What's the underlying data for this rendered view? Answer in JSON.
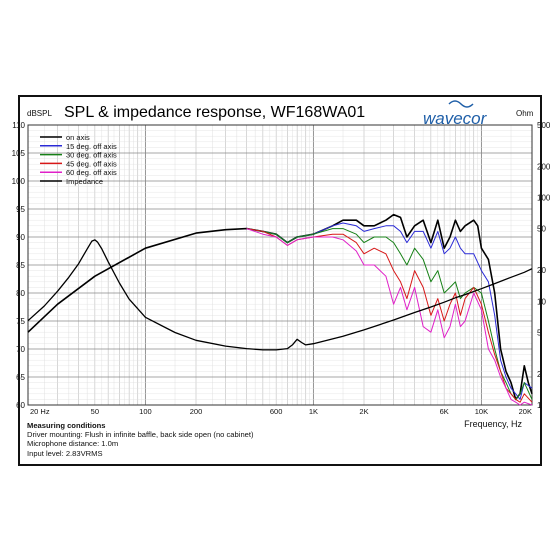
{
  "chart_data": {
    "type": "line",
    "title": "SPL & impedance response, WF168WA01",
    "brand": "wavecor",
    "brand_color": "#1f5fa8",
    "left_axis_label": "dBSPL",
    "right_axis_label": "Ohm",
    "xlabel": "Frequency, Hz",
    "x_scale": "log",
    "xlim": [
      20,
      20000
    ],
    "ylim_left": [
      60,
      110
    ],
    "ylim_right_log": [
      1,
      500
    ],
    "x_tick_labels": [
      {
        "v": 20,
        "t": "20 Hz"
      },
      {
        "v": 50,
        "t": "50"
      },
      {
        "v": 100,
        "t": "100"
      },
      {
        "v": 200,
        "t": "200"
      },
      {
        "v": 600,
        "t": "600"
      },
      {
        "v": 1000,
        "t": "1K"
      },
      {
        "v": 2000,
        "t": "2K"
      },
      {
        "v": 6000,
        "t": "6K"
      },
      {
        "v": 10000,
        "t": "10K"
      },
      {
        "v": 20000,
        "t": "20K"
      }
    ],
    "y_left_ticks": [
      60,
      65,
      70,
      75,
      80,
      85,
      90,
      95,
      100,
      105,
      110
    ],
    "y_right_ticks": [
      {
        "v": 1,
        "t": "1"
      },
      {
        "v": 2,
        "t": "2"
      },
      {
        "v": 5,
        "t": "5"
      },
      {
        "v": 10,
        "t": "10"
      },
      {
        "v": 20,
        "t": "20"
      },
      {
        "v": 50,
        "t": "50"
      },
      {
        "v": 100,
        "t": "100"
      },
      {
        "v": 200,
        "t": "200"
      },
      {
        "v": 500,
        "t": "500"
      }
    ],
    "grid": true,
    "legend_position": "top-left",
    "series": [
      {
        "name": "on axis",
        "color": "#000000",
        "axis": "left",
        "width": 1.6,
        "points": [
          [
            20,
            73
          ],
          [
            30,
            78
          ],
          [
            50,
            83
          ],
          [
            100,
            88
          ],
          [
            200,
            90.7
          ],
          [
            300,
            91.3
          ],
          [
            400,
            91.5
          ],
          [
            500,
            91
          ],
          [
            600,
            90.5
          ],
          [
            700,
            89
          ],
          [
            800,
            90
          ],
          [
            1000,
            90.5
          ],
          [
            1300,
            92
          ],
          [
            1500,
            93
          ],
          [
            1800,
            93
          ],
          [
            2000,
            92
          ],
          [
            2300,
            92
          ],
          [
            2700,
            93
          ],
          [
            3000,
            94
          ],
          [
            3300,
            93.5
          ],
          [
            3600,
            90
          ],
          [
            4000,
            92
          ],
          [
            4500,
            93
          ],
          [
            5000,
            89
          ],
          [
            5500,
            93
          ],
          [
            6000,
            88
          ],
          [
            6500,
            90
          ],
          [
            7000,
            93
          ],
          [
            7500,
            91
          ],
          [
            8000,
            92
          ],
          [
            9000,
            93
          ],
          [
            9500,
            92
          ],
          [
            10000,
            88
          ],
          [
            11000,
            86
          ],
          [
            12000,
            80
          ],
          [
            13000,
            70
          ],
          [
            14000,
            66
          ],
          [
            15000,
            64
          ],
          [
            16000,
            61
          ],
          [
            17000,
            62
          ],
          [
            18000,
            67
          ],
          [
            19000,
            64
          ],
          [
            20000,
            62
          ]
        ]
      },
      {
        "name": "15 deg. off axis",
        "color": "#2a2ad6",
        "axis": "left",
        "width": 1,
        "points": [
          [
            400,
            91.5
          ],
          [
            500,
            91
          ],
          [
            600,
            90.5
          ],
          [
            700,
            89
          ],
          [
            800,
            90
          ],
          [
            1000,
            90.5
          ],
          [
            1300,
            92
          ],
          [
            1500,
            92.5
          ],
          [
            1800,
            92
          ],
          [
            2000,
            91
          ],
          [
            2300,
            91.5
          ],
          [
            2700,
            92
          ],
          [
            3000,
            92
          ],
          [
            3300,
            91
          ],
          [
            3600,
            89
          ],
          [
            4000,
            91
          ],
          [
            4500,
            91
          ],
          [
            5000,
            88
          ],
          [
            5500,
            91
          ],
          [
            6000,
            87
          ],
          [
            6500,
            88
          ],
          [
            7000,
            90
          ],
          [
            7500,
            88
          ],
          [
            8000,
            87
          ],
          [
            9000,
            87
          ],
          [
            10000,
            84
          ],
          [
            11000,
            82
          ],
          [
            12000,
            76
          ],
          [
            13000,
            68
          ],
          [
            14000,
            65
          ],
          [
            15000,
            63
          ],
          [
            16000,
            62
          ],
          [
            17000,
            61
          ],
          [
            18000,
            64
          ],
          [
            20000,
            63
          ]
        ]
      },
      {
        "name": "30 deg. off axis",
        "color": "#168016",
        "axis": "left",
        "width": 1,
        "points": [
          [
            400,
            91.5
          ],
          [
            500,
            91
          ],
          [
            600,
            90.5
          ],
          [
            700,
            89
          ],
          [
            800,
            90
          ],
          [
            1000,
            90.5
          ],
          [
            1300,
            91.5
          ],
          [
            1500,
            91.5
          ],
          [
            1800,
            90.5
          ],
          [
            2000,
            89
          ],
          [
            2300,
            90
          ],
          [
            2700,
            90
          ],
          [
            3000,
            89
          ],
          [
            3300,
            87
          ],
          [
            3600,
            85
          ],
          [
            4000,
            88
          ],
          [
            4500,
            86
          ],
          [
            5000,
            82
          ],
          [
            5500,
            84
          ],
          [
            6000,
            80
          ],
          [
            6500,
            81
          ],
          [
            7000,
            82
          ],
          [
            7500,
            79
          ],
          [
            8000,
            80
          ],
          [
            9000,
            81
          ],
          [
            10000,
            80
          ],
          [
            11000,
            75
          ],
          [
            12000,
            70
          ],
          [
            13000,
            66
          ],
          [
            14000,
            64
          ],
          [
            15000,
            62
          ],
          [
            16000,
            61
          ],
          [
            17000,
            62
          ],
          [
            18000,
            64
          ],
          [
            20000,
            61
          ]
        ]
      },
      {
        "name": "45 deg. off axis",
        "color": "#d81818",
        "axis": "left",
        "width": 1,
        "points": [
          [
            400,
            91.5
          ],
          [
            500,
            91
          ],
          [
            600,
            90
          ],
          [
            700,
            88.5
          ],
          [
            800,
            89.5
          ],
          [
            1000,
            90
          ],
          [
            1300,
            90.5
          ],
          [
            1500,
            90.5
          ],
          [
            1800,
            89
          ],
          [
            2000,
            87
          ],
          [
            2300,
            88
          ],
          [
            2700,
            87
          ],
          [
            3000,
            84
          ],
          [
            3300,
            82
          ],
          [
            3600,
            79
          ],
          [
            4000,
            84
          ],
          [
            4500,
            81
          ],
          [
            5000,
            76
          ],
          [
            5500,
            79
          ],
          [
            6000,
            75
          ],
          [
            6500,
            78
          ],
          [
            7000,
            80
          ],
          [
            7500,
            76
          ],
          [
            8000,
            79
          ],
          [
            9000,
            81
          ],
          [
            10000,
            78
          ],
          [
            11000,
            73
          ],
          [
            12000,
            69
          ],
          [
            13000,
            66
          ],
          [
            14000,
            63
          ],
          [
            15000,
            62
          ],
          [
            16000,
            61
          ],
          [
            17000,
            60.5
          ],
          [
            18000,
            62
          ],
          [
            20000,
            60.5
          ]
        ]
      },
      {
        "name": "60 deg. off axis",
        "color": "#e020c8",
        "axis": "left",
        "width": 1,
        "points": [
          [
            400,
            91.5
          ],
          [
            500,
            90.5
          ],
          [
            600,
            90
          ],
          [
            700,
            88.5
          ],
          [
            800,
            89.5
          ],
          [
            1000,
            90
          ],
          [
            1300,
            90
          ],
          [
            1500,
            89.5
          ],
          [
            1800,
            87.5
          ],
          [
            2000,
            85
          ],
          [
            2300,
            85
          ],
          [
            2700,
            83
          ],
          [
            3000,
            78
          ],
          [
            3300,
            81
          ],
          [
            3600,
            77
          ],
          [
            4000,
            81
          ],
          [
            4500,
            74
          ],
          [
            5000,
            73
          ],
          [
            5500,
            77
          ],
          [
            6000,
            72
          ],
          [
            6500,
            74
          ],
          [
            7000,
            78
          ],
          [
            7500,
            74
          ],
          [
            8000,
            75
          ],
          [
            9000,
            80
          ],
          [
            10000,
            77
          ],
          [
            11000,
            70
          ],
          [
            12000,
            68
          ],
          [
            13000,
            65
          ],
          [
            14000,
            63
          ],
          [
            15000,
            61
          ],
          [
            16000,
            60.5
          ],
          [
            17000,
            60
          ],
          [
            18000,
            60.5
          ],
          [
            20000,
            60
          ]
        ]
      },
      {
        "name": "Impedance",
        "color": "#000000",
        "axis": "right",
        "width": 1.3,
        "points": [
          [
            20,
            6.5
          ],
          [
            25,
            9
          ],
          [
            30,
            12.5
          ],
          [
            35,
            17
          ],
          [
            40,
            23
          ],
          [
            45,
            32
          ],
          [
            48,
            38
          ],
          [
            50,
            39
          ],
          [
            52,
            37
          ],
          [
            55,
            32
          ],
          [
            60,
            24
          ],
          [
            70,
            15
          ],
          [
            80,
            10.5
          ],
          [
            100,
            7
          ],
          [
            150,
            5
          ],
          [
            200,
            4.2
          ],
          [
            300,
            3.7
          ],
          [
            400,
            3.5
          ],
          [
            500,
            3.4
          ],
          [
            600,
            3.4
          ],
          [
            700,
            3.5
          ],
          [
            750,
            3.8
          ],
          [
            800,
            4.3
          ],
          [
            850,
            4
          ],
          [
            900,
            3.8
          ],
          [
            1000,
            3.9
          ],
          [
            1500,
            4.6
          ],
          [
            2000,
            5.3
          ],
          [
            3000,
            6.6
          ],
          [
            4000,
            7.8
          ],
          [
            5000,
            8.8
          ],
          [
            6000,
            9.8
          ],
          [
            7000,
            10.8
          ],
          [
            8000,
            11.6
          ],
          [
            10000,
            13.2
          ],
          [
            12000,
            14.8
          ],
          [
            15000,
            17
          ],
          [
            18000,
            19
          ],
          [
            20000,
            20.6
          ]
        ]
      }
    ]
  },
  "notes": {
    "heading": "Measuring conditions",
    "lines": [
      "Driver mounting: Flush in infinite baffle, back side open (no cabinet)",
      "Microphone distance: 1.0m",
      "Input level: 2.83VRMS"
    ]
  }
}
